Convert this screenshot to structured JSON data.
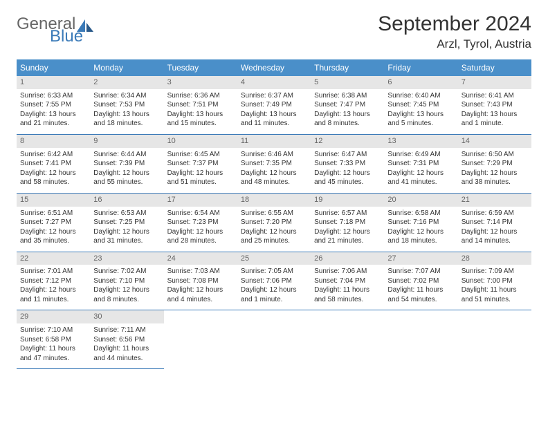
{
  "logo": {
    "word1": "General",
    "word2": "Blue",
    "fill": "#3a7ab8",
    "grey": "#666666"
  },
  "title": "September 2024",
  "location": "Arzl, Tyrol, Austria",
  "header_bg": "#4a8fc9",
  "daynum_bg": "#e6e6e6",
  "rule_color": "#3a7ab8",
  "weekdays": [
    "Sunday",
    "Monday",
    "Tuesday",
    "Wednesday",
    "Thursday",
    "Friday",
    "Saturday"
  ],
  "weeks": [
    [
      {
        "n": "1",
        "sr": "Sunrise: 6:33 AM",
        "ss": "Sunset: 7:55 PM",
        "dl": "Daylight: 13 hours and 21 minutes."
      },
      {
        "n": "2",
        "sr": "Sunrise: 6:34 AM",
        "ss": "Sunset: 7:53 PM",
        "dl": "Daylight: 13 hours and 18 minutes."
      },
      {
        "n": "3",
        "sr": "Sunrise: 6:36 AM",
        "ss": "Sunset: 7:51 PM",
        "dl": "Daylight: 13 hours and 15 minutes."
      },
      {
        "n": "4",
        "sr": "Sunrise: 6:37 AM",
        "ss": "Sunset: 7:49 PM",
        "dl": "Daylight: 13 hours and 11 minutes."
      },
      {
        "n": "5",
        "sr": "Sunrise: 6:38 AM",
        "ss": "Sunset: 7:47 PM",
        "dl": "Daylight: 13 hours and 8 minutes."
      },
      {
        "n": "6",
        "sr": "Sunrise: 6:40 AM",
        "ss": "Sunset: 7:45 PM",
        "dl": "Daylight: 13 hours and 5 minutes."
      },
      {
        "n": "7",
        "sr": "Sunrise: 6:41 AM",
        "ss": "Sunset: 7:43 PM",
        "dl": "Daylight: 13 hours and 1 minute."
      }
    ],
    [
      {
        "n": "8",
        "sr": "Sunrise: 6:42 AM",
        "ss": "Sunset: 7:41 PM",
        "dl": "Daylight: 12 hours and 58 minutes."
      },
      {
        "n": "9",
        "sr": "Sunrise: 6:44 AM",
        "ss": "Sunset: 7:39 PM",
        "dl": "Daylight: 12 hours and 55 minutes."
      },
      {
        "n": "10",
        "sr": "Sunrise: 6:45 AM",
        "ss": "Sunset: 7:37 PM",
        "dl": "Daylight: 12 hours and 51 minutes."
      },
      {
        "n": "11",
        "sr": "Sunrise: 6:46 AM",
        "ss": "Sunset: 7:35 PM",
        "dl": "Daylight: 12 hours and 48 minutes."
      },
      {
        "n": "12",
        "sr": "Sunrise: 6:47 AM",
        "ss": "Sunset: 7:33 PM",
        "dl": "Daylight: 12 hours and 45 minutes."
      },
      {
        "n": "13",
        "sr": "Sunrise: 6:49 AM",
        "ss": "Sunset: 7:31 PM",
        "dl": "Daylight: 12 hours and 41 minutes."
      },
      {
        "n": "14",
        "sr": "Sunrise: 6:50 AM",
        "ss": "Sunset: 7:29 PM",
        "dl": "Daylight: 12 hours and 38 minutes."
      }
    ],
    [
      {
        "n": "15",
        "sr": "Sunrise: 6:51 AM",
        "ss": "Sunset: 7:27 PM",
        "dl": "Daylight: 12 hours and 35 minutes."
      },
      {
        "n": "16",
        "sr": "Sunrise: 6:53 AM",
        "ss": "Sunset: 7:25 PM",
        "dl": "Daylight: 12 hours and 31 minutes."
      },
      {
        "n": "17",
        "sr": "Sunrise: 6:54 AM",
        "ss": "Sunset: 7:23 PM",
        "dl": "Daylight: 12 hours and 28 minutes."
      },
      {
        "n": "18",
        "sr": "Sunrise: 6:55 AM",
        "ss": "Sunset: 7:20 PM",
        "dl": "Daylight: 12 hours and 25 minutes."
      },
      {
        "n": "19",
        "sr": "Sunrise: 6:57 AM",
        "ss": "Sunset: 7:18 PM",
        "dl": "Daylight: 12 hours and 21 minutes."
      },
      {
        "n": "20",
        "sr": "Sunrise: 6:58 AM",
        "ss": "Sunset: 7:16 PM",
        "dl": "Daylight: 12 hours and 18 minutes."
      },
      {
        "n": "21",
        "sr": "Sunrise: 6:59 AM",
        "ss": "Sunset: 7:14 PM",
        "dl": "Daylight: 12 hours and 14 minutes."
      }
    ],
    [
      {
        "n": "22",
        "sr": "Sunrise: 7:01 AM",
        "ss": "Sunset: 7:12 PM",
        "dl": "Daylight: 12 hours and 11 minutes."
      },
      {
        "n": "23",
        "sr": "Sunrise: 7:02 AM",
        "ss": "Sunset: 7:10 PM",
        "dl": "Daylight: 12 hours and 8 minutes."
      },
      {
        "n": "24",
        "sr": "Sunrise: 7:03 AM",
        "ss": "Sunset: 7:08 PM",
        "dl": "Daylight: 12 hours and 4 minutes."
      },
      {
        "n": "25",
        "sr": "Sunrise: 7:05 AM",
        "ss": "Sunset: 7:06 PM",
        "dl": "Daylight: 12 hours and 1 minute."
      },
      {
        "n": "26",
        "sr": "Sunrise: 7:06 AM",
        "ss": "Sunset: 7:04 PM",
        "dl": "Daylight: 11 hours and 58 minutes."
      },
      {
        "n": "27",
        "sr": "Sunrise: 7:07 AM",
        "ss": "Sunset: 7:02 PM",
        "dl": "Daylight: 11 hours and 54 minutes."
      },
      {
        "n": "28",
        "sr": "Sunrise: 7:09 AM",
        "ss": "Sunset: 7:00 PM",
        "dl": "Daylight: 11 hours and 51 minutes."
      }
    ],
    [
      {
        "n": "29",
        "sr": "Sunrise: 7:10 AM",
        "ss": "Sunset: 6:58 PM",
        "dl": "Daylight: 11 hours and 47 minutes."
      },
      {
        "n": "30",
        "sr": "Sunrise: 7:11 AM",
        "ss": "Sunset: 6:56 PM",
        "dl": "Daylight: 11 hours and 44 minutes."
      },
      null,
      null,
      null,
      null,
      null
    ]
  ]
}
